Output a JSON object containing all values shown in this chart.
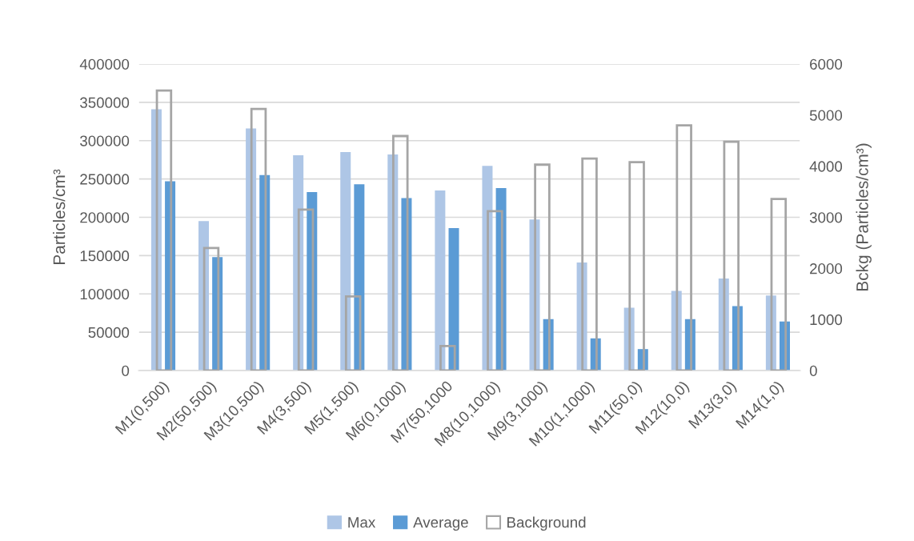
{
  "chart_data": {
    "type": "bar",
    "ylabel": "Particles/cm³",
    "y2label": "Bckg (Particles/cm³)",
    "categories": [
      "M1(0,500)",
      "M2(50,500)",
      "M3(10,500)",
      "M4(3,500)",
      "M5(1,500)",
      "M6(0,1000)",
      "M7(50,1000",
      "M8(10,1000)",
      "M9(3,1000)",
      "M10(1,1000)",
      "M11(50,0)",
      "M12(10,0)",
      "M13(3,0)",
      "M14(1,0)"
    ],
    "series": [
      {
        "name": "Max",
        "color": "#aec6e6",
        "values": [
          341000,
          195000,
          316000,
          281000,
          285000,
          282000,
          235000,
          267000,
          197000,
          141000,
          82000,
          104000,
          120000,
          98000
        ]
      },
      {
        "name": "Average",
        "color": "#5b9bd5",
        "values": [
          247000,
          148000,
          255000,
          233000,
          243000,
          225000,
          186000,
          238000,
          67000,
          42000,
          28000,
          67000,
          84000,
          64000
        ]
      },
      {
        "name": "Background",
        "color": "#a5a5a5",
        "axis": "y2",
        "values": [
          5480,
          2400,
          5120,
          3150,
          1450,
          4590,
          480,
          3120,
          4030,
          4150,
          4080,
          4800,
          4480,
          3360
        ]
      }
    ],
    "ylim": [
      0,
      400000
    ],
    "yticks": [
      0,
      50000,
      100000,
      150000,
      200000,
      250000,
      300000,
      350000,
      400000
    ],
    "y2lim": [
      0,
      6000
    ],
    "y2ticks": [
      0,
      1000,
      2000,
      3000,
      4000,
      5000,
      6000
    ],
    "grid": "y",
    "legend": "bottom"
  }
}
